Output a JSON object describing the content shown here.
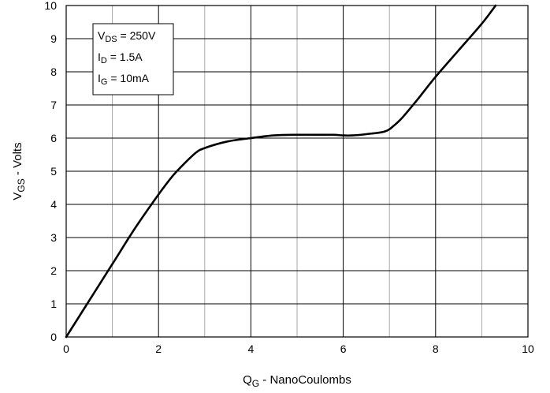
{
  "chart_data": {
    "type": "line",
    "title": "",
    "xlabel": {
      "main": "Q",
      "sub": "G",
      "rest": " - NanoCoulombs"
    },
    "ylabel": {
      "main": "V",
      "sub": "GS",
      "rest": " - Volts"
    },
    "xlim": [
      0,
      10
    ],
    "ylim": [
      0,
      10
    ],
    "xticks": [
      "0",
      "2",
      "4",
      "6",
      "8",
      "10"
    ],
    "yticks": [
      "0",
      "1",
      "2",
      "3",
      "4",
      "5",
      "6",
      "7",
      "8",
      "9",
      "10"
    ],
    "grid": true,
    "series": [
      {
        "x": [
          0,
          0.5,
          1,
          1.5,
          2,
          2.3,
          2.5,
          2.8,
          3,
          3.5,
          4,
          4.5,
          5,
          5.5,
          5.8,
          6,
          6.2,
          6.5,
          6.9,
          7.1,
          7.3,
          7.6,
          8,
          8.5,
          9,
          9.3
        ],
        "y": [
          0,
          1.1,
          2.2,
          3.3,
          4.3,
          4.85,
          5.15,
          5.55,
          5.7,
          5.9,
          6.0,
          6.08,
          6.1,
          6.1,
          6.1,
          6.08,
          6.08,
          6.12,
          6.2,
          6.38,
          6.65,
          7.15,
          7.85,
          8.65,
          9.45,
          10.0
        ]
      }
    ],
    "annotations": [
      {
        "main": "V",
        "sub": "DS",
        "rest": " = 250V"
      },
      {
        "main": "I",
        "sub": "D",
        "rest": " = 1.5A"
      },
      {
        "main": "I",
        "sub": "G",
        "rest": " = 10mA"
      }
    ],
    "colors": {
      "line": "#000000",
      "grid": "#a0a0a0",
      "axis": "#000000",
      "background": "#ffffff"
    }
  }
}
